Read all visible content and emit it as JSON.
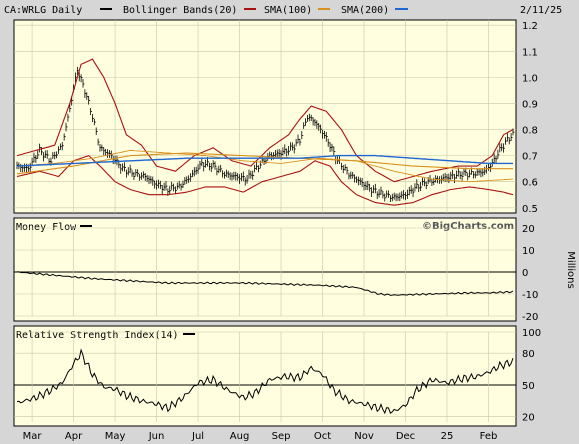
{
  "header": {
    "symbol": "CA:WRLG Daily",
    "legend": [
      {
        "name": "Bollinger Bands(20)",
        "color": "#000000"
      },
      {
        "name": "SMA(100)",
        "color": "#aa1111"
      },
      {
        "name": "SMA(200)",
        "color": "#d8901c"
      },
      {
        "name": "",
        "color": "#1e66d0"
      }
    ],
    "date": "2/11/25",
    "watermark": "©BigCharts.com"
  },
  "chart_data": [
    {
      "type": "line",
      "panel": "price",
      "title": "CA:WRLG Daily",
      "ylim": [
        0.48,
        1.22
      ],
      "y_ticks": [
        "1.2",
        "1.1",
        "1.0",
        "0.9",
        "0.8",
        "0.7",
        "0.6",
        "0.5"
      ],
      "y_tick_values": [
        1.2,
        1.1,
        1.0,
        0.9,
        0.8,
        0.7,
        0.6,
        0.5
      ],
      "x_labels": [
        "Mar",
        "Apr",
        "May",
        "Jun",
        "Jul",
        "Aug",
        "Sep",
        "Oct",
        "Nov",
        "Dec",
        "25",
        "Feb"
      ],
      "x_label_index": [
        8,
        30,
        52,
        74,
        96,
        118,
        140,
        162,
        184,
        206,
        228,
        250
      ],
      "n_bars": 264,
      "price_knots": [
        [
          0,
          0.66
        ],
        [
          6,
          0.65
        ],
        [
          12,
          0.72
        ],
        [
          18,
          0.68
        ],
        [
          24,
          0.74
        ],
        [
          28,
          0.88
        ],
        [
          32,
          1.03
        ],
        [
          36,
          0.95
        ],
        [
          40,
          0.85
        ],
        [
          44,
          0.73
        ],
        [
          50,
          0.7
        ],
        [
          56,
          0.65
        ],
        [
          62,
          0.63
        ],
        [
          68,
          0.62
        ],
        [
          74,
          0.59
        ],
        [
          80,
          0.57
        ],
        [
          86,
          0.58
        ],
        [
          92,
          0.62
        ],
        [
          98,
          0.67
        ],
        [
          104,
          0.66
        ],
        [
          110,
          0.63
        ],
        [
          116,
          0.62
        ],
        [
          122,
          0.61
        ],
        [
          128,
          0.66
        ],
        [
          134,
          0.7
        ],
        [
          140,
          0.71
        ],
        [
          146,
          0.73
        ],
        [
          150,
          0.76
        ],
        [
          154,
          0.85
        ],
        [
          158,
          0.83
        ],
        [
          162,
          0.79
        ],
        [
          166,
          0.74
        ],
        [
          170,
          0.68
        ],
        [
          176,
          0.63
        ],
        [
          182,
          0.6
        ],
        [
          188,
          0.57
        ],
        [
          194,
          0.55
        ],
        [
          200,
          0.54
        ],
        [
          206,
          0.55
        ],
        [
          212,
          0.58
        ],
        [
          218,
          0.6
        ],
        [
          224,
          0.61
        ],
        [
          230,
          0.62
        ],
        [
          236,
          0.63
        ],
        [
          242,
          0.63
        ],
        [
          248,
          0.64
        ],
        [
          252,
          0.67
        ],
        [
          256,
          0.72
        ],
        [
          260,
          0.76
        ],
        [
          263,
          0.78
        ]
      ],
      "sma100_knots": [
        [
          0,
          0.66
        ],
        [
          20,
          0.67
        ],
        [
          40,
          0.69
        ],
        [
          60,
          0.72
        ],
        [
          80,
          0.71
        ],
        [
          100,
          0.7
        ],
        [
          120,
          0.68
        ],
        [
          140,
          0.67
        ],
        [
          160,
          0.69
        ],
        [
          180,
          0.68
        ],
        [
          200,
          0.64
        ],
        [
          220,
          0.61
        ],
        [
          240,
          0.6
        ],
        [
          263,
          0.61
        ]
      ],
      "sma200_knots": [
        [
          0,
          0.63
        ],
        [
          30,
          0.66
        ],
        [
          60,
          0.7
        ],
        [
          90,
          0.71
        ],
        [
          120,
          0.7
        ],
        [
          150,
          0.69
        ],
        [
          180,
          0.68
        ],
        [
          210,
          0.66
        ],
        [
          240,
          0.65
        ],
        [
          263,
          0.65
        ]
      ],
      "sma_blue_knots": [
        [
          0,
          0.66
        ],
        [
          30,
          0.67
        ],
        [
          60,
          0.68
        ],
        [
          90,
          0.69
        ],
        [
          120,
          0.69
        ],
        [
          150,
          0.69
        ],
        [
          170,
          0.7
        ],
        [
          190,
          0.7
        ],
        [
          210,
          0.69
        ],
        [
          230,
          0.68
        ],
        [
          250,
          0.67
        ],
        [
          263,
          0.67
        ]
      ],
      "band_upper_knots": [
        [
          0,
          0.7
        ],
        [
          20,
          0.74
        ],
        [
          28,
          0.9
        ],
        [
          34,
          1.05
        ],
        [
          40,
          1.07
        ],
        [
          46,
          1.0
        ],
        [
          52,
          0.9
        ],
        [
          58,
          0.78
        ],
        [
          66,
          0.74
        ],
        [
          74,
          0.66
        ],
        [
          84,
          0.64
        ],
        [
          94,
          0.7
        ],
        [
          104,
          0.73
        ],
        [
          114,
          0.68
        ],
        [
          124,
          0.66
        ],
        [
          134,
          0.73
        ],
        [
          144,
          0.78
        ],
        [
          150,
          0.84
        ],
        [
          156,
          0.89
        ],
        [
          164,
          0.87
        ],
        [
          172,
          0.8
        ],
        [
          180,
          0.7
        ],
        [
          190,
          0.64
        ],
        [
          200,
          0.6
        ],
        [
          210,
          0.62
        ],
        [
          220,
          0.64
        ],
        [
          234,
          0.66
        ],
        [
          244,
          0.66
        ],
        [
          252,
          0.7
        ],
        [
          258,
          0.78
        ],
        [
          263,
          0.8
        ]
      ],
      "band_lower_knots": [
        [
          0,
          0.62
        ],
        [
          12,
          0.64
        ],
        [
          22,
          0.62
        ],
        [
          30,
          0.68
        ],
        [
          38,
          0.7
        ],
        [
          44,
          0.66
        ],
        [
          52,
          0.6
        ],
        [
          60,
          0.57
        ],
        [
          70,
          0.55
        ],
        [
          80,
          0.55
        ],
        [
          90,
          0.56
        ],
        [
          100,
          0.58
        ],
        [
          110,
          0.58
        ],
        [
          120,
          0.56
        ],
        [
          130,
          0.6
        ],
        [
          140,
          0.62
        ],
        [
          150,
          0.64
        ],
        [
          158,
          0.68
        ],
        [
          166,
          0.66
        ],
        [
          172,
          0.6
        ],
        [
          180,
          0.55
        ],
        [
          190,
          0.52
        ],
        [
          200,
          0.51
        ],
        [
          210,
          0.52
        ],
        [
          220,
          0.55
        ],
        [
          230,
          0.57
        ],
        [
          240,
          0.58
        ],
        [
          250,
          0.57
        ],
        [
          258,
          0.56
        ],
        [
          263,
          0.55
        ]
      ]
    },
    {
      "type": "line",
      "panel": "money_flow",
      "title": "Money Flow",
      "ylabel": "Millions",
      "ylim": [
        -20,
        20
      ],
      "y_ticks": [
        "20",
        "10",
        "0",
        "-10",
        "-20"
      ],
      "y_tick_values": [
        20,
        10,
        0,
        -10,
        -20
      ],
      "knots": [
        [
          0,
          0.0
        ],
        [
          20,
          -1.5
        ],
        [
          40,
          -3
        ],
        [
          60,
          -4
        ],
        [
          80,
          -5
        ],
        [
          100,
          -5
        ],
        [
          120,
          -5
        ],
        [
          140,
          -5.5
        ],
        [
          160,
          -6
        ],
        [
          180,
          -7
        ],
        [
          192,
          -10
        ],
        [
          200,
          -10.5
        ],
        [
          220,
          -10
        ],
        [
          240,
          -9.5
        ],
        [
          250,
          -9.5
        ],
        [
          263,
          -9.0
        ]
      ]
    },
    {
      "type": "line",
      "panel": "rsi",
      "title": "Relative Strength Index(14)",
      "ylim": [
        15,
        100
      ],
      "y_ticks": [
        "100",
        "80",
        "50",
        "20"
      ],
      "y_tick_values": [
        100,
        80,
        50,
        20
      ],
      "knots": [
        [
          0,
          33
        ],
        [
          10,
          38
        ],
        [
          18,
          45
        ],
        [
          24,
          52
        ],
        [
          30,
          70
        ],
        [
          34,
          80
        ],
        [
          40,
          60
        ],
        [
          46,
          48
        ],
        [
          52,
          46
        ],
        [
          58,
          40
        ],
        [
          66,
          35
        ],
        [
          74,
          32
        ],
        [
          80,
          28
        ],
        [
          88,
          38
        ],
        [
          96,
          52
        ],
        [
          104,
          55
        ],
        [
          112,
          45
        ],
        [
          120,
          38
        ],
        [
          126,
          42
        ],
        [
          134,
          55
        ],
        [
          142,
          58
        ],
        [
          150,
          57
        ],
        [
          156,
          66
        ],
        [
          162,
          60
        ],
        [
          168,
          45
        ],
        [
          176,
          35
        ],
        [
          184,
          32
        ],
        [
          192,
          28
        ],
        [
          200,
          25
        ],
        [
          206,
          31
        ],
        [
          212,
          45
        ],
        [
          220,
          55
        ],
        [
          228,
          52
        ],
        [
          236,
          56
        ],
        [
          244,
          58
        ],
        [
          250,
          62
        ],
        [
          256,
          68
        ],
        [
          263,
          72
        ]
      ]
    }
  ]
}
